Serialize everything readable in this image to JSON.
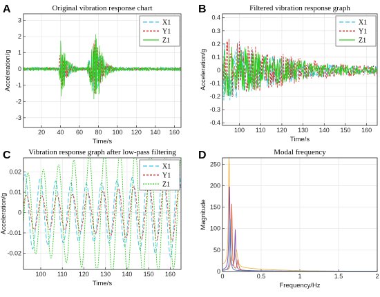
{
  "chart_data": [
    {
      "panel": "A",
      "type": "line",
      "title": "Original vibration response chart",
      "xlabel": "Time/s",
      "ylabel": "Acceleration/g",
      "xlim": [
        1,
        167
      ],
      "ylim": [
        -3.6,
        3.4
      ],
      "xticks": [
        20,
        40,
        60,
        80,
        100,
        120,
        140,
        160
      ],
      "yticks": [
        -3,
        -2,
        -1,
        0,
        1,
        2,
        3
      ],
      "grid": true,
      "legend": "top-right",
      "signal": {
        "baseline_amplitude": 0.12,
        "events": [
          {
            "start": 38,
            "peak": 40,
            "end": 62,
            "amplitude": 1.9
          },
          {
            "start": 67,
            "peak": 77,
            "end": 100,
            "amplitude": 2.6
          }
        ]
      },
      "series": [
        {
          "name": "X1",
          "color": "#33c2e6",
          "dash": "6,3"
        },
        {
          "name": "Y1",
          "color": "#d62b1e",
          "dash": "3,2"
        },
        {
          "name": "Z1",
          "color": "#2ecc1e",
          "dash": ""
        }
      ]
    },
    {
      "panel": "B",
      "type": "line",
      "title": "Filtered vibration response graph",
      "xlabel": "Time/s",
      "ylabel": "Acceleration/g",
      "xlim": [
        92,
        165
      ],
      "ylim": [
        -0.42,
        0.43
      ],
      "xticks": [
        100,
        110,
        120,
        130,
        140,
        150,
        160
      ],
      "yticks": [
        -0.4,
        -0.3,
        -0.2,
        -0.1,
        0,
        0.1,
        0.2,
        0.3,
        0.4
      ],
      "grid": true,
      "legend": "top-right",
      "signal": {
        "start_amplitude": 0.31,
        "end_amplitude": 0.04,
        "decay_per_s": 0.032
      },
      "series": [
        {
          "name": "X1",
          "color": "#33c2e6",
          "dash": "6,3"
        },
        {
          "name": "Y1",
          "color": "#d62b1e",
          "dash": "3,2"
        },
        {
          "name": "Z1",
          "color": "#2ecc1e",
          "dash": ""
        }
      ]
    },
    {
      "panel": "C",
      "type": "line",
      "title": "Vibration response graph after low-pass filtering",
      "xlabel": "Time/s",
      "ylabel": "Acceleration/g",
      "xlim": [
        92,
        165
      ],
      "ylim": [
        -0.028,
        0.027
      ],
      "xticks": [
        100,
        110,
        120,
        130,
        140,
        150,
        160
      ],
      "yticks": [
        -0.02,
        -0.01,
        0,
        0.01,
        0.02
      ],
      "grid": true,
      "legend": "top-right",
      "signal": {
        "period_s": 7.1
      },
      "series": [
        {
          "name": "X1",
          "color": "#33c2e6",
          "dash": "6,3",
          "amplitude": 0.019,
          "phase": 1.2
        },
        {
          "name": "Y1",
          "color": "#d62b1e",
          "dash": "3,2",
          "amplitude": 0.011,
          "phase": 0.6
        },
        {
          "name": "Z1",
          "color": "#2ecc1e",
          "dash": "2,1.5",
          "amplitude": 0.025,
          "phase": 0.0
        }
      ]
    },
    {
      "panel": "D",
      "type": "line",
      "title": "Modal frequency",
      "xlabel": "Frequency/Hz",
      "ylabel": "Magnitude",
      "xlim": [
        0,
        2
      ],
      "ylim": [
        0,
        265
      ],
      "xticks": [
        0,
        0.5,
        1,
        1.5,
        2
      ],
      "yticks": [
        0,
        50,
        100,
        150,
        200,
        250
      ],
      "grid": true,
      "series": [
        {
          "color": "#f2b84b",
          "peaks": [
            {
              "x": 0.085,
              "y": 262,
              "width": 0.016
            },
            {
              "x": 0.18,
              "y": 38,
              "width": 0.03
            }
          ],
          "tail": 14
        },
        {
          "color": "#7f45a8",
          "peaks": [
            {
              "x": 0.09,
              "y": 205,
              "width": 0.014
            },
            {
              "x": 0.165,
              "y": 95,
              "width": 0.012
            }
          ],
          "tail": 3
        },
        {
          "color": "#e25a2c",
          "peaks": [
            {
              "x": 0.12,
              "y": 155,
              "width": 0.012
            },
            {
              "x": 0.2,
              "y": 25,
              "width": 0.02
            }
          ],
          "tail": 2
        },
        {
          "color": "#4a7fc1",
          "peaks": [
            {
              "x": 0.1,
              "y": 120,
              "width": 0.012
            }
          ],
          "tail": 2
        }
      ]
    }
  ]
}
